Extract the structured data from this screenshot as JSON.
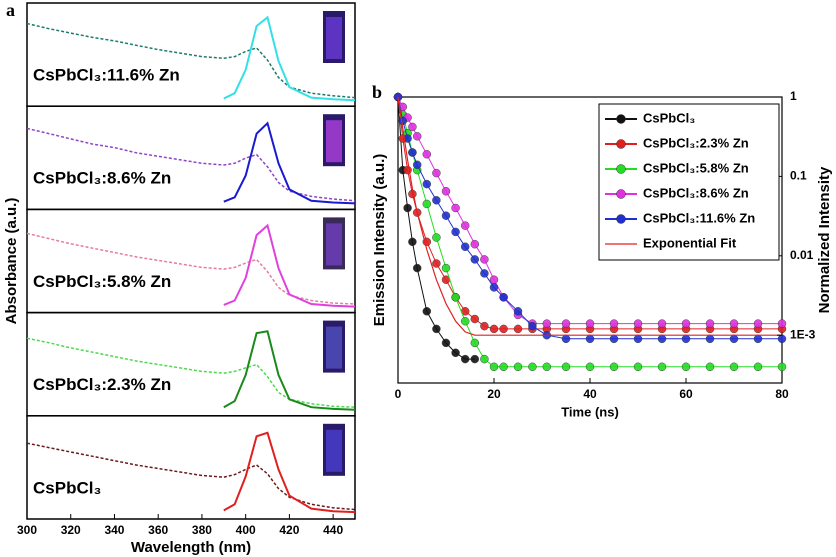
{
  "chart_data": [
    {
      "type": "line",
      "label": "a",
      "x_label": "Wavelength (nm)",
      "y_label": "Absorbance (a.u.)",
      "xlim": [
        300,
        450
      ],
      "xticks": [
        300,
        320,
        340,
        360,
        380,
        400,
        420,
        440
      ],
      "ylim": [
        0,
        1
      ],
      "x": [
        300,
        310,
        320,
        330,
        340,
        350,
        360,
        370,
        380,
        390,
        395,
        400,
        405,
        410,
        415,
        420,
        430,
        440,
        450
      ],
      "panels": [
        {
          "title": "CsPbCl₃:11.6% Zn",
          "series": [
            {
              "color": "#1f7a6a",
              "style": "dashed",
              "values": [
                0.88,
                0.82,
                0.77,
                0.72,
                0.68,
                0.63,
                0.58,
                0.54,
                0.5,
                0.48,
                0.5,
                0.56,
                0.6,
                0.46,
                0.26,
                0.15,
                0.08,
                0.05,
                0.03
              ]
            },
            {
              "color": "#33e0e6",
              "style": "solid",
              "values": [
                null,
                null,
                null,
                null,
                null,
                null,
                null,
                null,
                null,
                0.02,
                0.08,
                0.35,
                0.85,
                0.95,
                0.45,
                0.15,
                0.03,
                0.01,
                0
              ]
            }
          ]
        },
        {
          "title": "CsPbCl₃:8.6% Zn",
          "series": [
            {
              "color": "#8e44c8",
              "style": "dashed",
              "values": [
                0.86,
                0.8,
                0.74,
                0.68,
                0.64,
                0.58,
                0.54,
                0.5,
                0.46,
                0.44,
                0.46,
                0.52,
                0.56,
                0.42,
                0.24,
                0.14,
                0.08,
                0.05,
                0.03
              ]
            },
            {
              "color": "#1a1ad0",
              "style": "solid",
              "values": [
                null,
                null,
                null,
                null,
                null,
                null,
                null,
                null,
                null,
                0.02,
                0.07,
                0.32,
                0.8,
                0.92,
                0.46,
                0.16,
                0.03,
                0.01,
                0
              ]
            }
          ]
        },
        {
          "title": "CsPbCl₃:5.8% Zn",
          "series": [
            {
              "color": "#e87aa0",
              "style": "dashed",
              "values": [
                0.84,
                0.78,
                0.72,
                0.67,
                0.62,
                0.57,
                0.53,
                0.49,
                0.45,
                0.43,
                0.45,
                0.5,
                0.54,
                0.4,
                0.22,
                0.13,
                0.07,
                0.04,
                0.03
              ]
            },
            {
              "color": "#e040e0",
              "style": "solid",
              "values": [
                null,
                null,
                null,
                null,
                null,
                null,
                null,
                null,
                null,
                0.02,
                0.07,
                0.33,
                0.82,
                0.93,
                0.44,
                0.14,
                0.03,
                0.01,
                0
              ]
            }
          ]
        },
        {
          "title": "CsPbCl₃:2.3% Zn",
          "series": [
            {
              "color": "#4cd94c",
              "style": "dashed",
              "values": [
                0.82,
                0.77,
                0.71,
                0.66,
                0.61,
                0.56,
                0.52,
                0.48,
                0.44,
                0.42,
                0.44,
                0.48,
                0.52,
                0.38,
                0.2,
                0.12,
                0.07,
                0.04,
                0.03
              ]
            },
            {
              "color": "#1a8a1a",
              "style": "solid",
              "values": [
                null,
                null,
                null,
                null,
                null,
                null,
                null,
                null,
                null,
                0.03,
                0.1,
                0.4,
                0.88,
                0.9,
                0.4,
                0.12,
                0.03,
                0.01,
                0
              ]
            }
          ]
        },
        {
          "title": "CsPbCl₃",
          "series": [
            {
              "color": "#6a1a1a",
              "style": "dashed",
              "values": [
                0.8,
                0.75,
                0.7,
                0.65,
                0.6,
                0.55,
                0.51,
                0.47,
                0.43,
                0.41,
                0.44,
                0.5,
                0.55,
                0.45,
                0.28,
                0.18,
                0.1,
                0.06,
                0.04
              ]
            },
            {
              "color": "#e02020",
              "style": "solid",
              "values": [
                null,
                null,
                null,
                null,
                null,
                null,
                null,
                null,
                null,
                0.03,
                0.1,
                0.42,
                0.88,
                0.92,
                0.5,
                0.2,
                0.05,
                0.02,
                0.01
              ]
            }
          ]
        }
      ]
    },
    {
      "type": "scatter",
      "label": "b",
      "x_label": "Time (ns)",
      "y_label": "Emission Intensity (a.u.)",
      "y2_label": "Normalized Intensity",
      "xlim": [
        0,
        80
      ],
      "xticks": [
        0,
        20,
        40,
        60,
        80
      ],
      "log_y": true,
      "y2lim": [
        0.00025,
        1
      ],
      "y2ticks": [
        1,
        0.1,
        0.01,
        {
          "value": 0.001,
          "label": "1E-3"
        }
      ],
      "legend": "upper right",
      "x": [
        0,
        1,
        2,
        3,
        4,
        6,
        8,
        10,
        12,
        14,
        16,
        18,
        20,
        22,
        25,
        28,
        31,
        35,
        40,
        45,
        50,
        55,
        60,
        65,
        70,
        75,
        80
      ],
      "series": [
        {
          "name": "CsPbCl₃",
          "color": "#111111",
          "style": "scatter",
          "axis": "y2",
          "values": [
            1,
            0.12,
            0.04,
            0.015,
            0.007,
            0.002,
            0.0012,
            0.0008,
            0.0006,
            0.0005,
            0.0005,
            null,
            null,
            null,
            null,
            null,
            null,
            null,
            null,
            null,
            null,
            null,
            null,
            null,
            null,
            null,
            null
          ]
        },
        {
          "name": "CsPbCl₃:2.3% Zn",
          "color": "#e02020",
          "style": "scatter",
          "axis": "y2",
          "values": [
            1,
            0.3,
            0.12,
            0.06,
            0.035,
            0.015,
            0.008,
            0.005,
            0.003,
            0.002,
            0.0016,
            0.0013,
            0.0012,
            0.0012,
            0.0012,
            0.0012,
            0.0012,
            0.0012,
            0.0012,
            0.0012,
            0.0012,
            0.0012,
            0.0012,
            0.0012,
            0.0012,
            0.0012,
            0.0012
          ]
        },
        {
          "name": "CsPbCl₃:5.8% Zn",
          "color": "#22dd22",
          "style": "scatter",
          "axis": "y2",
          "values": [
            1,
            0.6,
            0.35,
            0.2,
            0.12,
            0.045,
            0.017,
            0.007,
            0.003,
            0.0015,
            0.0008,
            0.0005,
            0.0004,
            0.0004,
            0.0004,
            0.0004,
            0.0004,
            0.0004,
            0.0004,
            0.0004,
            0.0004,
            0.0004,
            0.0004,
            0.0004,
            0.0004,
            0.0004,
            0.0004
          ]
        },
        {
          "name": "CsPbCl₃:8.6% Zn",
          "color": "#e030e0",
          "style": "scatter",
          "axis": "y2",
          "values": [
            1,
            0.75,
            0.55,
            0.42,
            0.32,
            0.19,
            0.11,
            0.065,
            0.04,
            0.024,
            0.014,
            0.009,
            0.005,
            0.003,
            0.0018,
            0.0014,
            0.0014,
            0.0014,
            0.0014,
            0.0014,
            0.0014,
            0.0014,
            0.0014,
            0.0014,
            0.0014,
            0.0014,
            0.0014
          ]
        },
        {
          "name": "CsPbCl₃:11.6% Zn",
          "color": "#2030d0",
          "style": "scatter",
          "axis": "y2",
          "values": [
            1,
            0.5,
            0.3,
            0.2,
            0.14,
            0.08,
            0.05,
            0.032,
            0.02,
            0.013,
            0.009,
            0.006,
            0.004,
            0.003,
            0.002,
            0.0013,
            0.001,
            0.0009,
            0.0009,
            0.0009,
            0.0009,
            0.0009,
            0.0009,
            0.0009,
            0.0009,
            0.0009,
            0.0009
          ]
        },
        {
          "name": "Exponential Fit",
          "color": "#e02020",
          "style": "line",
          "axis": "y2",
          "values": [
            1,
            0.4,
            0.16,
            0.07,
            0.035,
            0.012,
            0.005,
            0.0025,
            0.0015,
            0.0011,
            0.001,
            0.001,
            0.001,
            0.001,
            0.001,
            0.001,
            0.001,
            0.001,
            0.001,
            0.001,
            0.001,
            0.001,
            0.001,
            0.001,
            0.001,
            0.001,
            0.001
          ]
        }
      ]
    }
  ]
}
